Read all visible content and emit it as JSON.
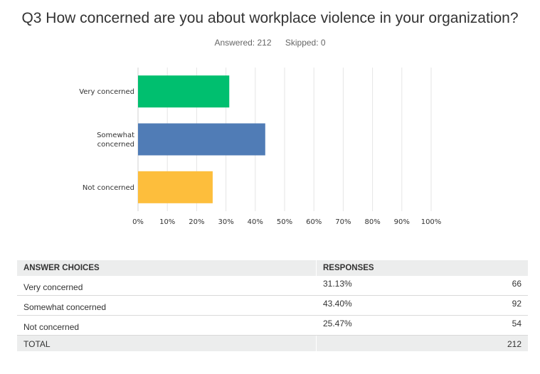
{
  "question": {
    "title": "Q3 How concerned are you about workplace violence in your organization?",
    "answered": "Answered: 212",
    "skipped": "Skipped: 0"
  },
  "chart_data": {
    "type": "bar",
    "orientation": "horizontal",
    "categories": [
      "Very concerned",
      "Somewhat concerned",
      "Not concerned"
    ],
    "category_lines": [
      [
        "Very concerned"
      ],
      [
        "Somewhat",
        "concerned"
      ],
      [
        "Not concerned"
      ]
    ],
    "values": [
      31.13,
      43.4,
      25.47
    ],
    "colors": [
      "#00bf6f",
      "#507cb6",
      "#fdbe3c"
    ],
    "xlim": [
      0,
      100
    ],
    "x_ticks": [
      "0%",
      "10%",
      "20%",
      "30%",
      "40%",
      "50%",
      "60%",
      "70%",
      "80%",
      "90%",
      "100%"
    ],
    "grid": true
  },
  "table": {
    "headers": {
      "choice": "ANSWER CHOICES",
      "responses": "RESPONSES"
    },
    "rows": [
      {
        "choice": "Very concerned",
        "percent": "31.13%",
        "count": "66"
      },
      {
        "choice": "Somewhat concerned",
        "percent": "43.40%",
        "count": "92"
      },
      {
        "choice": "Not concerned",
        "percent": "25.47%",
        "count": "54"
      }
    ],
    "total": {
      "label": "TOTAL",
      "count": "212"
    }
  }
}
